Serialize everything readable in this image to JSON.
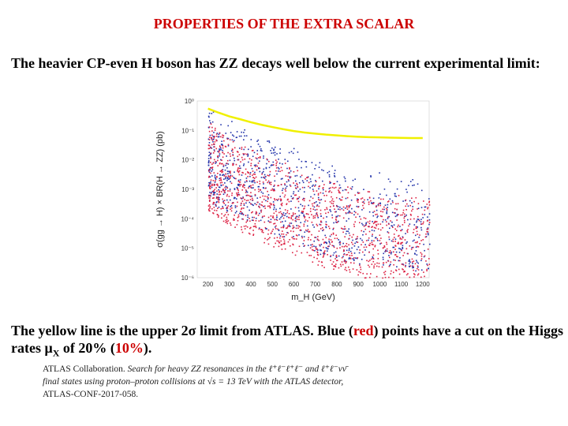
{
  "title": "PROPERTIES OF THE EXTRA SCALAR",
  "intro_text": "The heavier CP-even H boson has ZZ decays well below the current experimental limit:",
  "caption": {
    "part1": "The yellow line is the upper 2σ limit from ATLAS. Blue (",
    "red_word": "red",
    "part2": ") points have a cut on the Higgs rates ",
    "mu": "μ",
    "mu_sub": "X",
    "part3": " of 20% (",
    "red_pct": "10%",
    "part4": ")."
  },
  "reference": {
    "authors": "ATLAS Collaboration.",
    "line1": "Search for heavy ZZ resonances in the ℓ⁺ℓ⁻ℓ⁺ℓ⁻ and ℓ⁺ℓ⁻νν̄",
    "line2": "final states using proton–proton collisions at √s = 13 TeV with the ATLAS detector,",
    "line3": "ATLAS-CONF-2017-058."
  },
  "colors": {
    "title": "#cc0000",
    "blue_points": "#2233aa",
    "red_points": "#dd2244",
    "limit_line": "#f0f000"
  },
  "chart_data": {
    "type": "scatter",
    "xlabel": "m_H (GeV)",
    "ylabel": "σ(gg → H) × BR(H → ZZ) (pb)",
    "xlim": [
      150,
      1230
    ],
    "ylog": true,
    "ylim_exponent": [
      -6,
      0
    ],
    "x_ticks": [
      "200",
      "300",
      "400",
      "500",
      "600",
      "700",
      "800",
      "900",
      "1000",
      "1100",
      "1200"
    ],
    "y_ticks": [
      "10⁰",
      "10⁻¹",
      "10⁻²",
      "10⁻³",
      "10⁻⁴",
      "10⁻⁵",
      "10⁻⁶"
    ],
    "limit_curve": {
      "x": [
        200,
        250,
        300,
        350,
        400,
        450,
        500,
        550,
        600,
        650,
        700,
        750,
        800,
        850,
        900,
        950,
        1000,
        1050,
        1100,
        1150,
        1200
      ],
      "y": [
        0.55,
        0.4,
        0.3,
        0.24,
        0.19,
        0.155,
        0.13,
        0.11,
        0.095,
        0.085,
        0.078,
        0.072,
        0.068,
        0.064,
        0.061,
        0.059,
        0.058,
        0.057,
        0.056,
        0.055,
        0.055
      ]
    },
    "blue_band": {
      "upper_y": [
        0.6,
        0.25,
        0.1,
        0.05,
        0.025,
        0.012,
        0.006,
        0.004,
        0.0025
      ],
      "at_x": [
        200,
        300,
        400,
        500,
        600,
        700,
        800,
        1000,
        1200
      ]
    },
    "red_band": {
      "upper_y": [
        0.2,
        0.06,
        0.025,
        0.012,
        0.006,
        0.003,
        0.0015,
        0.0008,
        0.0005
      ],
      "at_x": [
        200,
        300,
        400,
        500,
        600,
        700,
        800,
        1000,
        1200
      ]
    }
  }
}
